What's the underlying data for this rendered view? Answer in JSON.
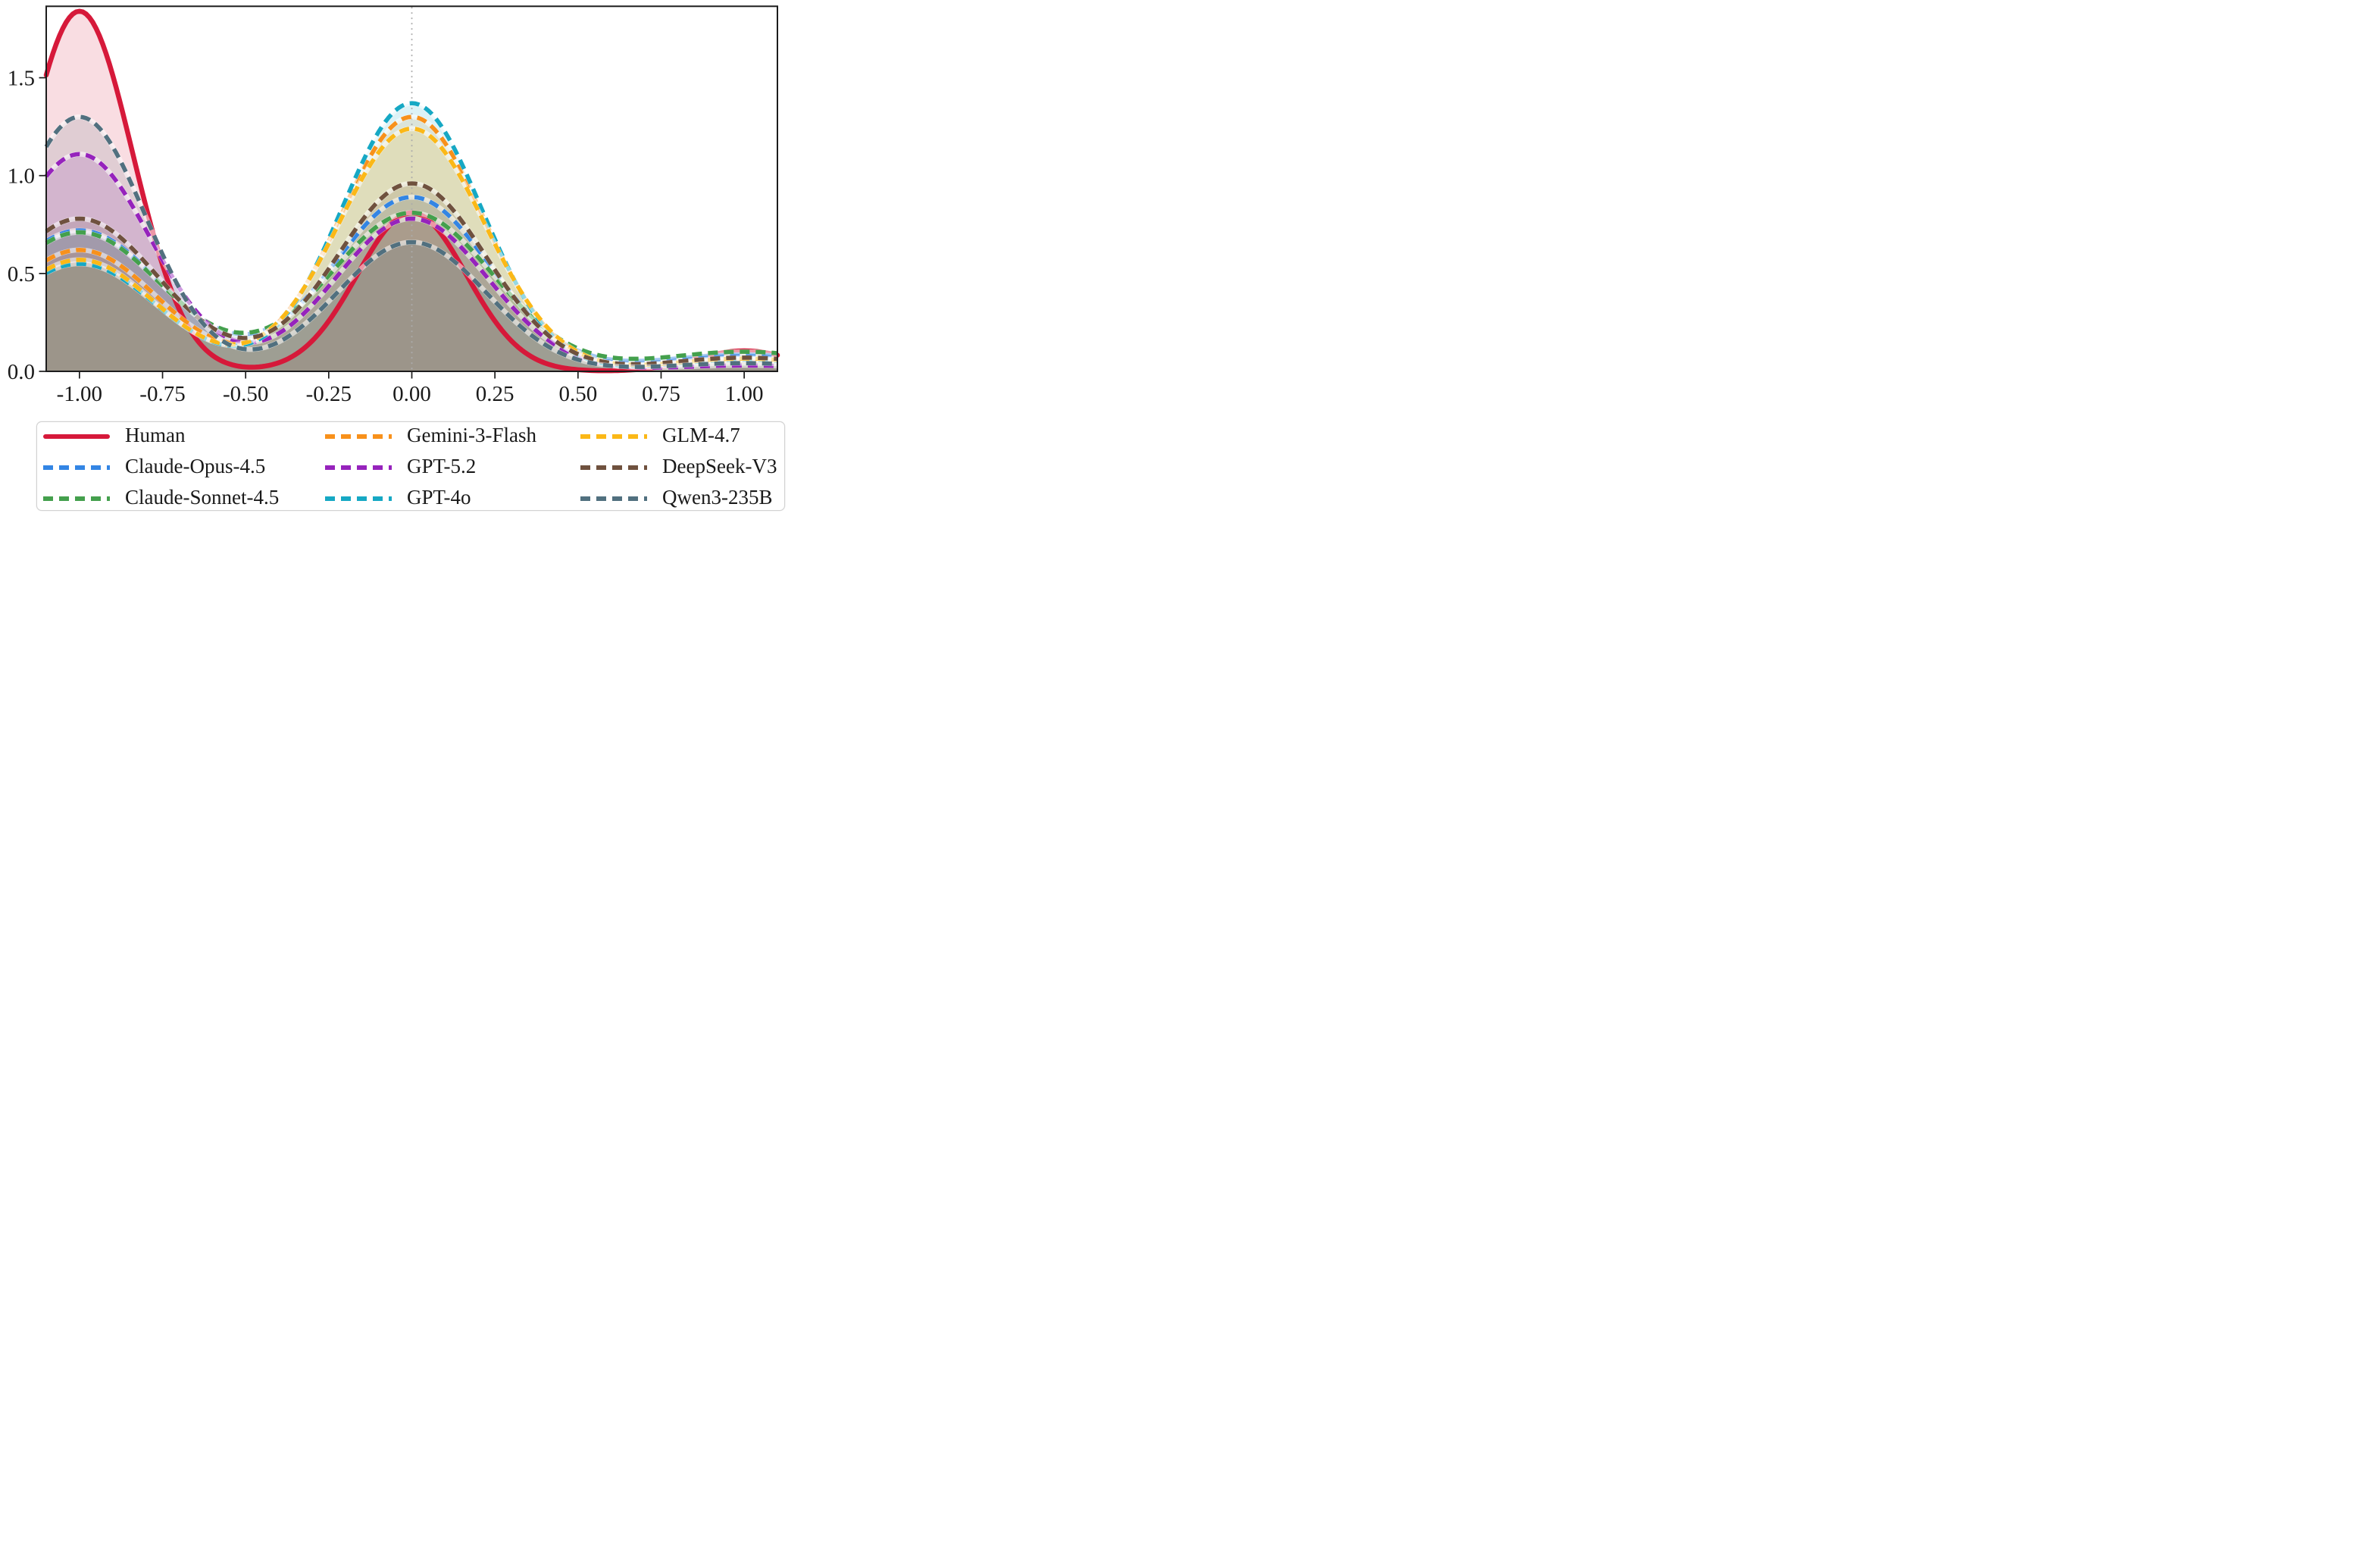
{
  "figure": {
    "background": "#ffffff",
    "plot_border_color": "#1c1c1c"
  },
  "chart_data": {
    "type": "area",
    "subtype": "kde-density-curves",
    "title": "",
    "xlabel": "",
    "ylabel": "",
    "xlim": [
      -1.1,
      1.1
    ],
    "ylim": [
      0,
      1.865
    ],
    "grid": false,
    "legend_position": "bottom",
    "reference_line": {
      "x": 0.0,
      "style": "dotted",
      "color": "#ababab"
    },
    "x_ticks": {
      "values": [
        -1.0,
        -0.75,
        -0.5,
        -0.25,
        0.0,
        0.25,
        0.5,
        0.75,
        1.0
      ],
      "labels": [
        "-1.00",
        "-0.75",
        "-0.50",
        "-0.25",
        "0.00",
        "0.25",
        "0.50",
        "0.75",
        "1.00"
      ]
    },
    "y_ticks": {
      "values": [
        0.0,
        0.5,
        1.0,
        1.5
      ],
      "labels": [
        "0.0",
        "0.5",
        "1.0",
        "1.5"
      ]
    },
    "encoding": "each series is a smooth density curve with translucent fill; curve = sum of gaussian components (x=center, height=peak density, width=sigma)",
    "fill_opacity": 0.15,
    "series": [
      {
        "name": "Human",
        "color": "#D6193A",
        "line_style": "solid",
        "peaks": [
          {
            "x": -1.0,
            "height": 1.84,
            "width": 0.16
          },
          {
            "x": 0.0,
            "height": 0.81,
            "width": 0.165
          },
          {
            "x": 1.0,
            "height": 0.105,
            "width": 0.145
          }
        ]
      },
      {
        "name": "Claude-Opus-4.5",
        "color": "#3385E4",
        "line_style": "dashed",
        "peaks": [
          {
            "x": -1.0,
            "height": 0.72,
            "width": 0.25
          },
          {
            "x": 0.0,
            "height": 0.89,
            "width": 0.235
          },
          {
            "x": 1.0,
            "height": 0.085,
            "width": 0.26
          }
        ]
      },
      {
        "name": "Claude-Sonnet-4.5",
        "color": "#44A04D",
        "line_style": "dashed",
        "peaks": [
          {
            "x": -1.0,
            "height": 0.71,
            "width": 0.25
          },
          {
            "x": 0.0,
            "height": 0.81,
            "width": 0.245
          },
          {
            "x": 1.0,
            "height": 0.1,
            "width": 0.26
          }
        ]
      },
      {
        "name": "Gemini-3-Flash",
        "color": "#F8911B",
        "line_style": "dashed",
        "peaks": [
          {
            "x": -1.0,
            "height": 0.62,
            "width": 0.235
          },
          {
            "x": 0.0,
            "height": 1.3,
            "width": 0.215
          },
          {
            "x": 1.0,
            "height": 0.055,
            "width": 0.22
          }
        ]
      },
      {
        "name": "GPT-5.2",
        "color": "#9623BC",
        "line_style": "dashed",
        "peaks": [
          {
            "x": -1.0,
            "height": 1.11,
            "width": 0.215
          },
          {
            "x": 0.0,
            "height": 0.78,
            "width": 0.23
          },
          {
            "x": 1.0,
            "height": 0.03,
            "width": 0.22
          }
        ]
      },
      {
        "name": "GPT-4o",
        "color": "#16A8C4",
        "line_style": "dashed",
        "peaks": [
          {
            "x": -1.0,
            "height": 0.55,
            "width": 0.235
          },
          {
            "x": 0.0,
            "height": 1.37,
            "width": 0.21
          },
          {
            "x": 1.0,
            "height": 0.06,
            "width": 0.22
          }
        ]
      },
      {
        "name": "GLM-4.7",
        "color": "#FBB817",
        "line_style": "dashed",
        "peaks": [
          {
            "x": -1.0,
            "height": 0.57,
            "width": 0.23
          },
          {
            "x": 0.0,
            "height": 1.24,
            "width": 0.22
          },
          {
            "x": 1.0,
            "height": 0.065,
            "width": 0.22
          }
        ]
      },
      {
        "name": "DeepSeek-V3",
        "color": "#6F513E",
        "line_style": "dashed",
        "peaks": [
          {
            "x": -1.0,
            "height": 0.78,
            "width": 0.24
          },
          {
            "x": 0.0,
            "height": 0.96,
            "width": 0.225
          },
          {
            "x": 1.0,
            "height": 0.07,
            "width": 0.23
          }
        ]
      },
      {
        "name": "Qwen3-235B",
        "color": "#51707F",
        "line_style": "dashed",
        "peaks": [
          {
            "x": -1.0,
            "height": 1.3,
            "width": 0.2
          },
          {
            "x": 0.0,
            "height": 0.66,
            "width": 0.225
          },
          {
            "x": 1.0,
            "height": 0.042,
            "width": 0.23
          }
        ]
      }
    ]
  }
}
